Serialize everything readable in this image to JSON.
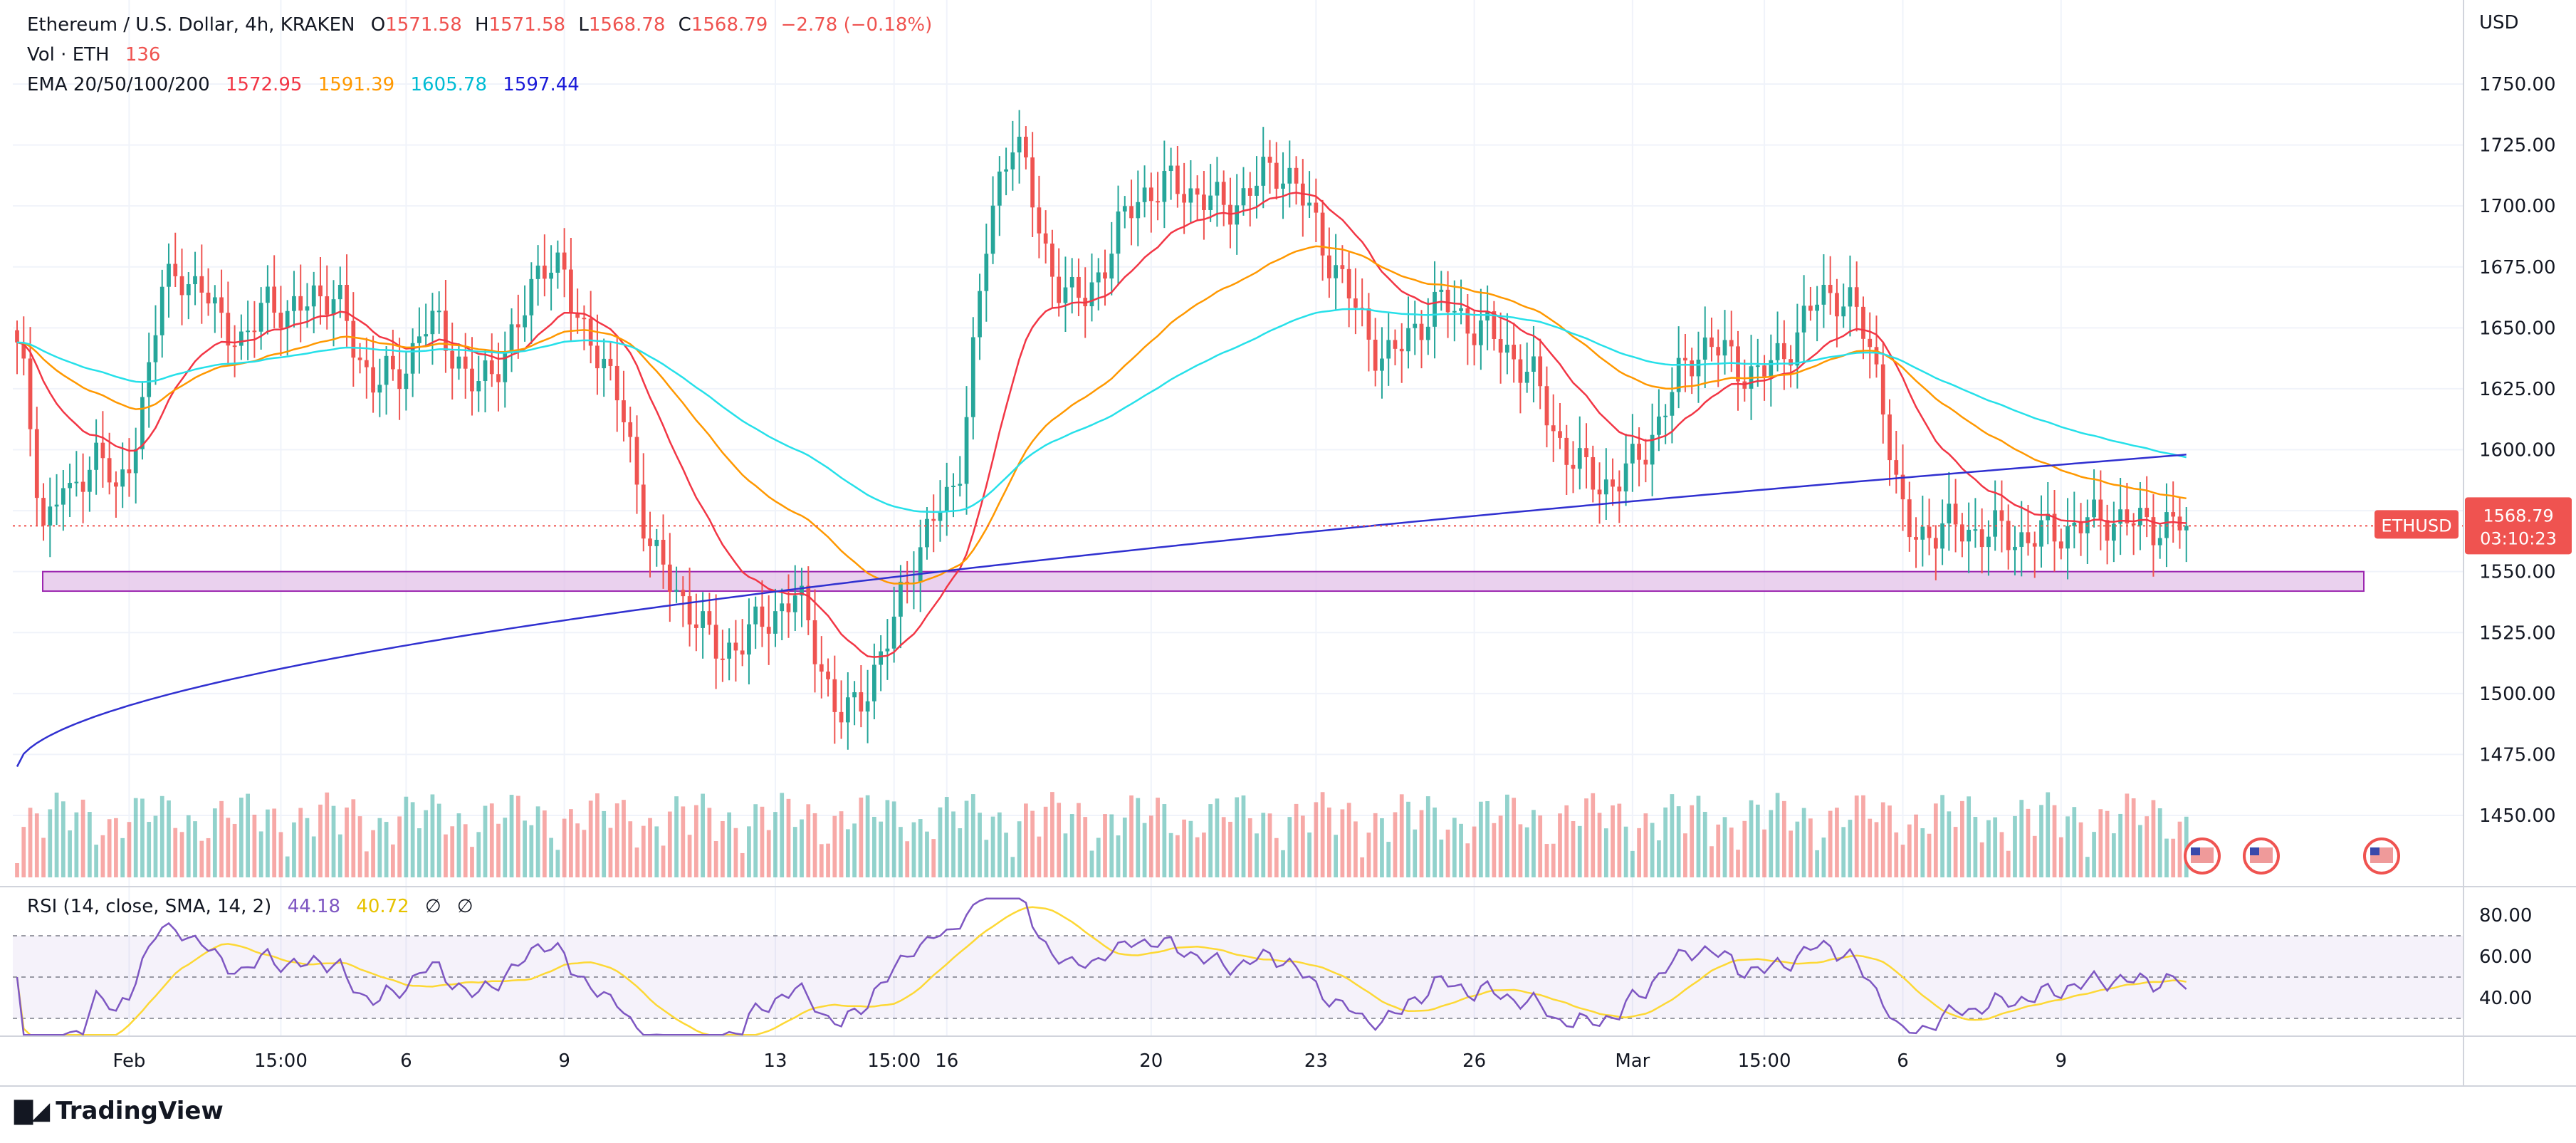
{
  "header": {
    "symbol_title": "Ethereum / U.S. Dollar, 4h, KRAKEN",
    "open_label": "O",
    "open": "1571.58",
    "high_label": "H",
    "high": "1571.58",
    "low_label": "L",
    "low": "1568.78",
    "close_label": "C",
    "close": "1568.79",
    "change": "−2.78 (−0.18%)",
    "volume_label": "Vol · ETH",
    "volume_value": "136",
    "ema_label": "EMA 20/50/100/200",
    "ema20": "1572.95",
    "ema50": "1591.39",
    "ema100": "1605.78",
    "ema200": "1597.44",
    "rsi_label": "RSI (14, close, SMA, 14, 2)",
    "rsi_value": "44.18",
    "rsi_sma_value": "40.72",
    "rsi_empty1": "∅",
    "rsi_empty2": "∅"
  },
  "colors": {
    "up": "#26a69a",
    "down": "#ef5350",
    "ema20": "#f23645",
    "ema50": "#ff9800",
    "ema100": "#26e0e9",
    "ema200": "#3030d0",
    "rsi": "#7e57c2",
    "rsi_sma": "#fdd835",
    "support_zone": "#e1bee7",
    "support_border": "#9c27b0"
  },
  "price_badge": {
    "symbol": "ETHUSD",
    "price": "1568.79",
    "countdown": "03:10:23"
  },
  "brand": {
    "name": "TradingView",
    "logo_icon": "tradingview-logo-icon"
  },
  "chart_data": [
    {
      "type": "candlestick",
      "title": "Ethereum / U.S. Dollar, 4h, KRAKEN",
      "y_unit": "USD",
      "ylim": [
        1425,
        1765
      ],
      "y_ticks": [
        1450,
        1475,
        1500,
        1525,
        1550,
        1575,
        1600,
        1625,
        1650,
        1675,
        1700,
        1725,
        1750
      ],
      "y_tick_labels": [
        "1450.00",
        "1475.00",
        "1500.00",
        "1525.00",
        "1550.00",
        "1575.00",
        "1600.00",
        "1625.00",
        "1650.00",
        "1675.00",
        "1700.00",
        "1725.00",
        "1750.00"
      ],
      "x_tick_labels": [
        {
          "label": "Feb",
          "bar": 17
        },
        {
          "label": "15:00",
          "bar": 40
        },
        {
          "label": "6",
          "bar": 59
        },
        {
          "label": "9",
          "bar": 83
        },
        {
          "label": "13",
          "bar": 115
        },
        {
          "label": "15:00",
          "bar": 133
        },
        {
          "label": "16",
          "bar": 141
        },
        {
          "label": "20",
          "bar": 172
        },
        {
          "label": "23",
          "bar": 197
        },
        {
          "label": "26",
          "bar": 221
        },
        {
          "label": "Mar",
          "bar": 245
        },
        {
          "label": "15:00",
          "bar": 265
        },
        {
          "label": "6",
          "bar": 286
        },
        {
          "label": "9",
          "bar": 310
        }
      ],
      "ohlc_path_closes": [
        1640,
        1625,
        1595,
        1568,
        1575,
        1585,
        1578,
        1590,
        1596,
        1598,
        1592,
        1580,
        1590,
        1605,
        1618,
        1635,
        1665,
        1672,
        1676,
        1668,
        1662,
        1664,
        1660,
        1655,
        1648,
        1640,
        1645,
        1660,
        1665,
        1660,
        1650,
        1655,
        1662,
        1666,
        1664,
        1660,
        1658,
        1650,
        1640,
        1632,
        1626,
        1630,
        1628,
        1634,
        1640,
        1648,
        1652,
        1650,
        1644,
        1640,
        1630,
        1625,
        1628,
        1632,
        1640,
        1645,
        1650,
        1660,
        1672,
        1680,
        1678,
        1670,
        1655,
        1650,
        1648,
        1640,
        1628,
        1620,
        1610,
        1590,
        1570,
        1556,
        1550,
        1545,
        1540,
        1535,
        1530,
        1522,
        1518,
        1518,
        1520,
        1522,
        1525,
        1528,
        1532,
        1535,
        1538,
        1540,
        1530,
        1520,
        1510,
        1495,
        1490,
        1492,
        1498,
        1505,
        1512,
        1520,
        1530,
        1545,
        1555,
        1562,
        1570,
        1575,
        1580,
        1590,
        1620,
        1650,
        1680,
        1700,
        1718,
        1730,
        1722,
        1705,
        1690,
        1678,
        1670,
        1665,
        1660,
        1662,
        1668,
        1675,
        1682,
        1690,
        1698,
        1704,
        1706,
        1706,
        1708,
        1708,
        1708,
        1706,
        1704,
        1702,
        1700,
        1700,
        1702,
        1705,
        1708,
        1712,
        1714,
        1716,
        1712,
        1706,
        1698,
        1690,
        1682,
        1675,
        1668,
        1660,
        1652,
        1645,
        1640,
        1638,
        1640,
        1645,
        1650,
        1655,
        1658,
        1660,
        1658,
        1655,
        1652,
        1650,
        1648,
        1645,
        1642,
        1638,
        1634,
        1630,
        1622,
        1612,
        1604,
        1598,
        1594,
        1590,
        1588,
        1586,
        1586,
        1588,
        1592,
        1598,
        1604,
        1610,
        1618,
        1626,
        1634,
        1640,
        1642,
        1642,
        1640,
        1638,
        1635,
        1632,
        1630,
        1632,
        1636,
        1640,
        1645,
        1650,
        1656,
        1662,
        1664,
        1664,
        1662,
        1656,
        1648,
        1638,
        1625,
        1600,
        1575,
        1566,
        1566,
        1566,
        1567,
        1568,
        1568,
        1568,
        1567,
        1566,
        1566,
        1566,
        1565,
        1564,
        1564,
        1564,
        1565,
        1566,
        1567,
        1568,
        1569,
        1570,
        1571,
        1572,
        1572,
        1571,
        1570,
        1569,
        1569,
        1570,
        1570,
        1569,
        1568.79
      ],
      "ema20_closing_values": [
        1595,
        1598,
        1593,
        1586,
        1588,
        1600,
        1616,
        1632,
        1640,
        1642,
        1640,
        1640,
        1642,
        1648,
        1650,
        1648,
        1640,
        1635,
        1632,
        1640,
        1648,
        1650,
        1642,
        1625,
        1600,
        1575,
        1555,
        1545,
        1540,
        1532,
        1528,
        1525,
        1528,
        1538,
        1555,
        1590,
        1630,
        1665,
        1684,
        1692,
        1695,
        1698,
        1702,
        1690,
        1665,
        1652,
        1648,
        1650,
        1654,
        1652,
        1648,
        1640,
        1622,
        1605,
        1598,
        1606,
        1620,
        1636,
        1645,
        1648,
        1648,
        1640,
        1615,
        1592,
        1578,
        1572,
        1570,
        1568,
        1570,
        1572.95
      ]
    }
  ]
}
